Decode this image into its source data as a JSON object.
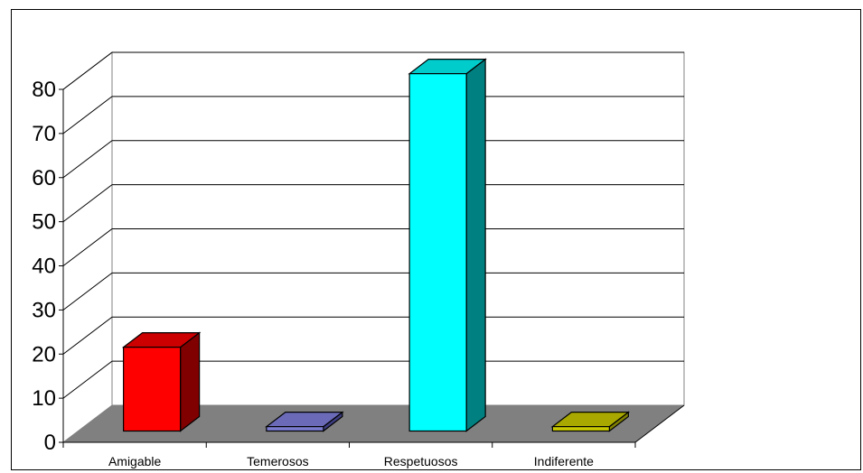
{
  "chart_data": {
    "type": "bar",
    "categories": [
      "Amigable",
      "Temerosos",
      "Respetuosos",
      "Indiferente"
    ],
    "values": [
      19,
      1,
      81,
      1
    ],
    "colors": [
      "#ff0000",
      "#7b7bcf",
      "#00ffff",
      "#c8c800"
    ],
    "side_colors": [
      "#800000",
      "#3d3d80",
      "#008080",
      "#808000"
    ],
    "top_colors": [
      "#cc0000",
      "#6a6ab8",
      "#00cccc",
      "#a8a800"
    ],
    "y_ticks": [
      "0",
      "10",
      "20",
      "30",
      "40",
      "50",
      "60",
      "70",
      "80"
    ],
    "ylim": [
      0,
      80
    ],
    "grid": true,
    "legend": "none",
    "floor_color": "#808080",
    "title": "",
    "xlabel": "",
    "ylabel": ""
  }
}
